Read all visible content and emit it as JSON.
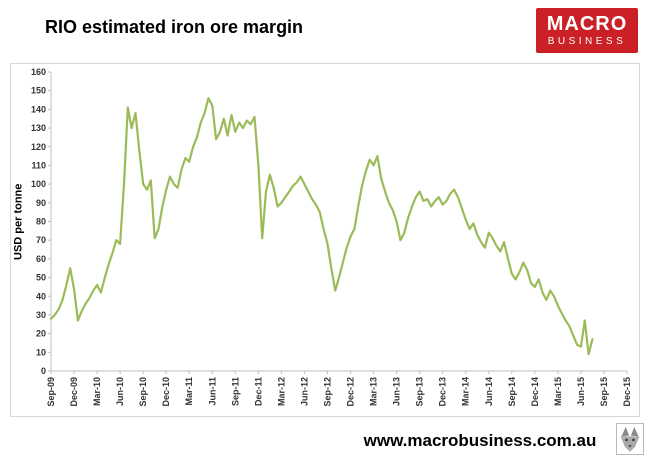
{
  "chart_data": {
    "type": "line",
    "title": "RIO estimated iron ore margin",
    "ylabel": "USD per tonne",
    "xlabel": "",
    "ylim": [
      0,
      160
    ],
    "ytick_step": 10,
    "grid": false,
    "legend": false,
    "line_color": "#9bbb59",
    "x_tick_labels": [
      "Sep-09",
      "Dec-09",
      "Mar-10",
      "Jun-10",
      "Sep-10",
      "Dec-10",
      "Mar-11",
      "Jun-11",
      "Sep-11",
      "Dec-11",
      "Mar-12",
      "Jun-12",
      "Sep-12",
      "Dec-12",
      "Mar-13",
      "Jun-13",
      "Sep-13",
      "Dec-13",
      "Mar-14",
      "Jun-14",
      "Sep-14",
      "Dec-14",
      "Mar-15",
      "Jun-15",
      "Sep-15",
      "Dec-15"
    ],
    "series": [
      {
        "name": "RIO estimated iron ore margin (USD per tonne)",
        "t_start": 0,
        "t_step_ticks": 0.1666667,
        "values": [
          28,
          30,
          33,
          38,
          46,
          55,
          44,
          27,
          32,
          36,
          39,
          43,
          46,
          42,
          50,
          57,
          63,
          70,
          68,
          100,
          141,
          130,
          138,
          118,
          100,
          97,
          102,
          71,
          76,
          88,
          97,
          104,
          100,
          98,
          108,
          114,
          112,
          120,
          125,
          133,
          138,
          146,
          142,
          124,
          128,
          135,
          126,
          137,
          128,
          133,
          130,
          134,
          132,
          136,
          110,
          71,
          96,
          105,
          98,
          88,
          90,
          93,
          96,
          99,
          101,
          104,
          100,
          96,
          92,
          89,
          85,
          76,
          68,
          55,
          43,
          50,
          58,
          66,
          72,
          76,
          88,
          99,
          107,
          113,
          110,
          115,
          103,
          96,
          90,
          86,
          80,
          70,
          74,
          82,
          88,
          93,
          96,
          91,
          92,
          88,
          91,
          93,
          89,
          91,
          95,
          97,
          93,
          87,
          81,
          76,
          79,
          73,
          69,
          66,
          74,
          71,
          67,
          64,
          69,
          60,
          52,
          49,
          53,
          58,
          54,
          47,
          45,
          49,
          42,
          38,
          43,
          40,
          35,
          31,
          27,
          24,
          19,
          14,
          13,
          27,
          9,
          17
        ]
      }
    ]
  },
  "logo": {
    "line1": "MACRO",
    "line2": "BUSINESS",
    "bg_color": "#cb2026",
    "text_color": "#ffffff"
  },
  "footer": {
    "url": "www.macrobusiness.com.au"
  }
}
